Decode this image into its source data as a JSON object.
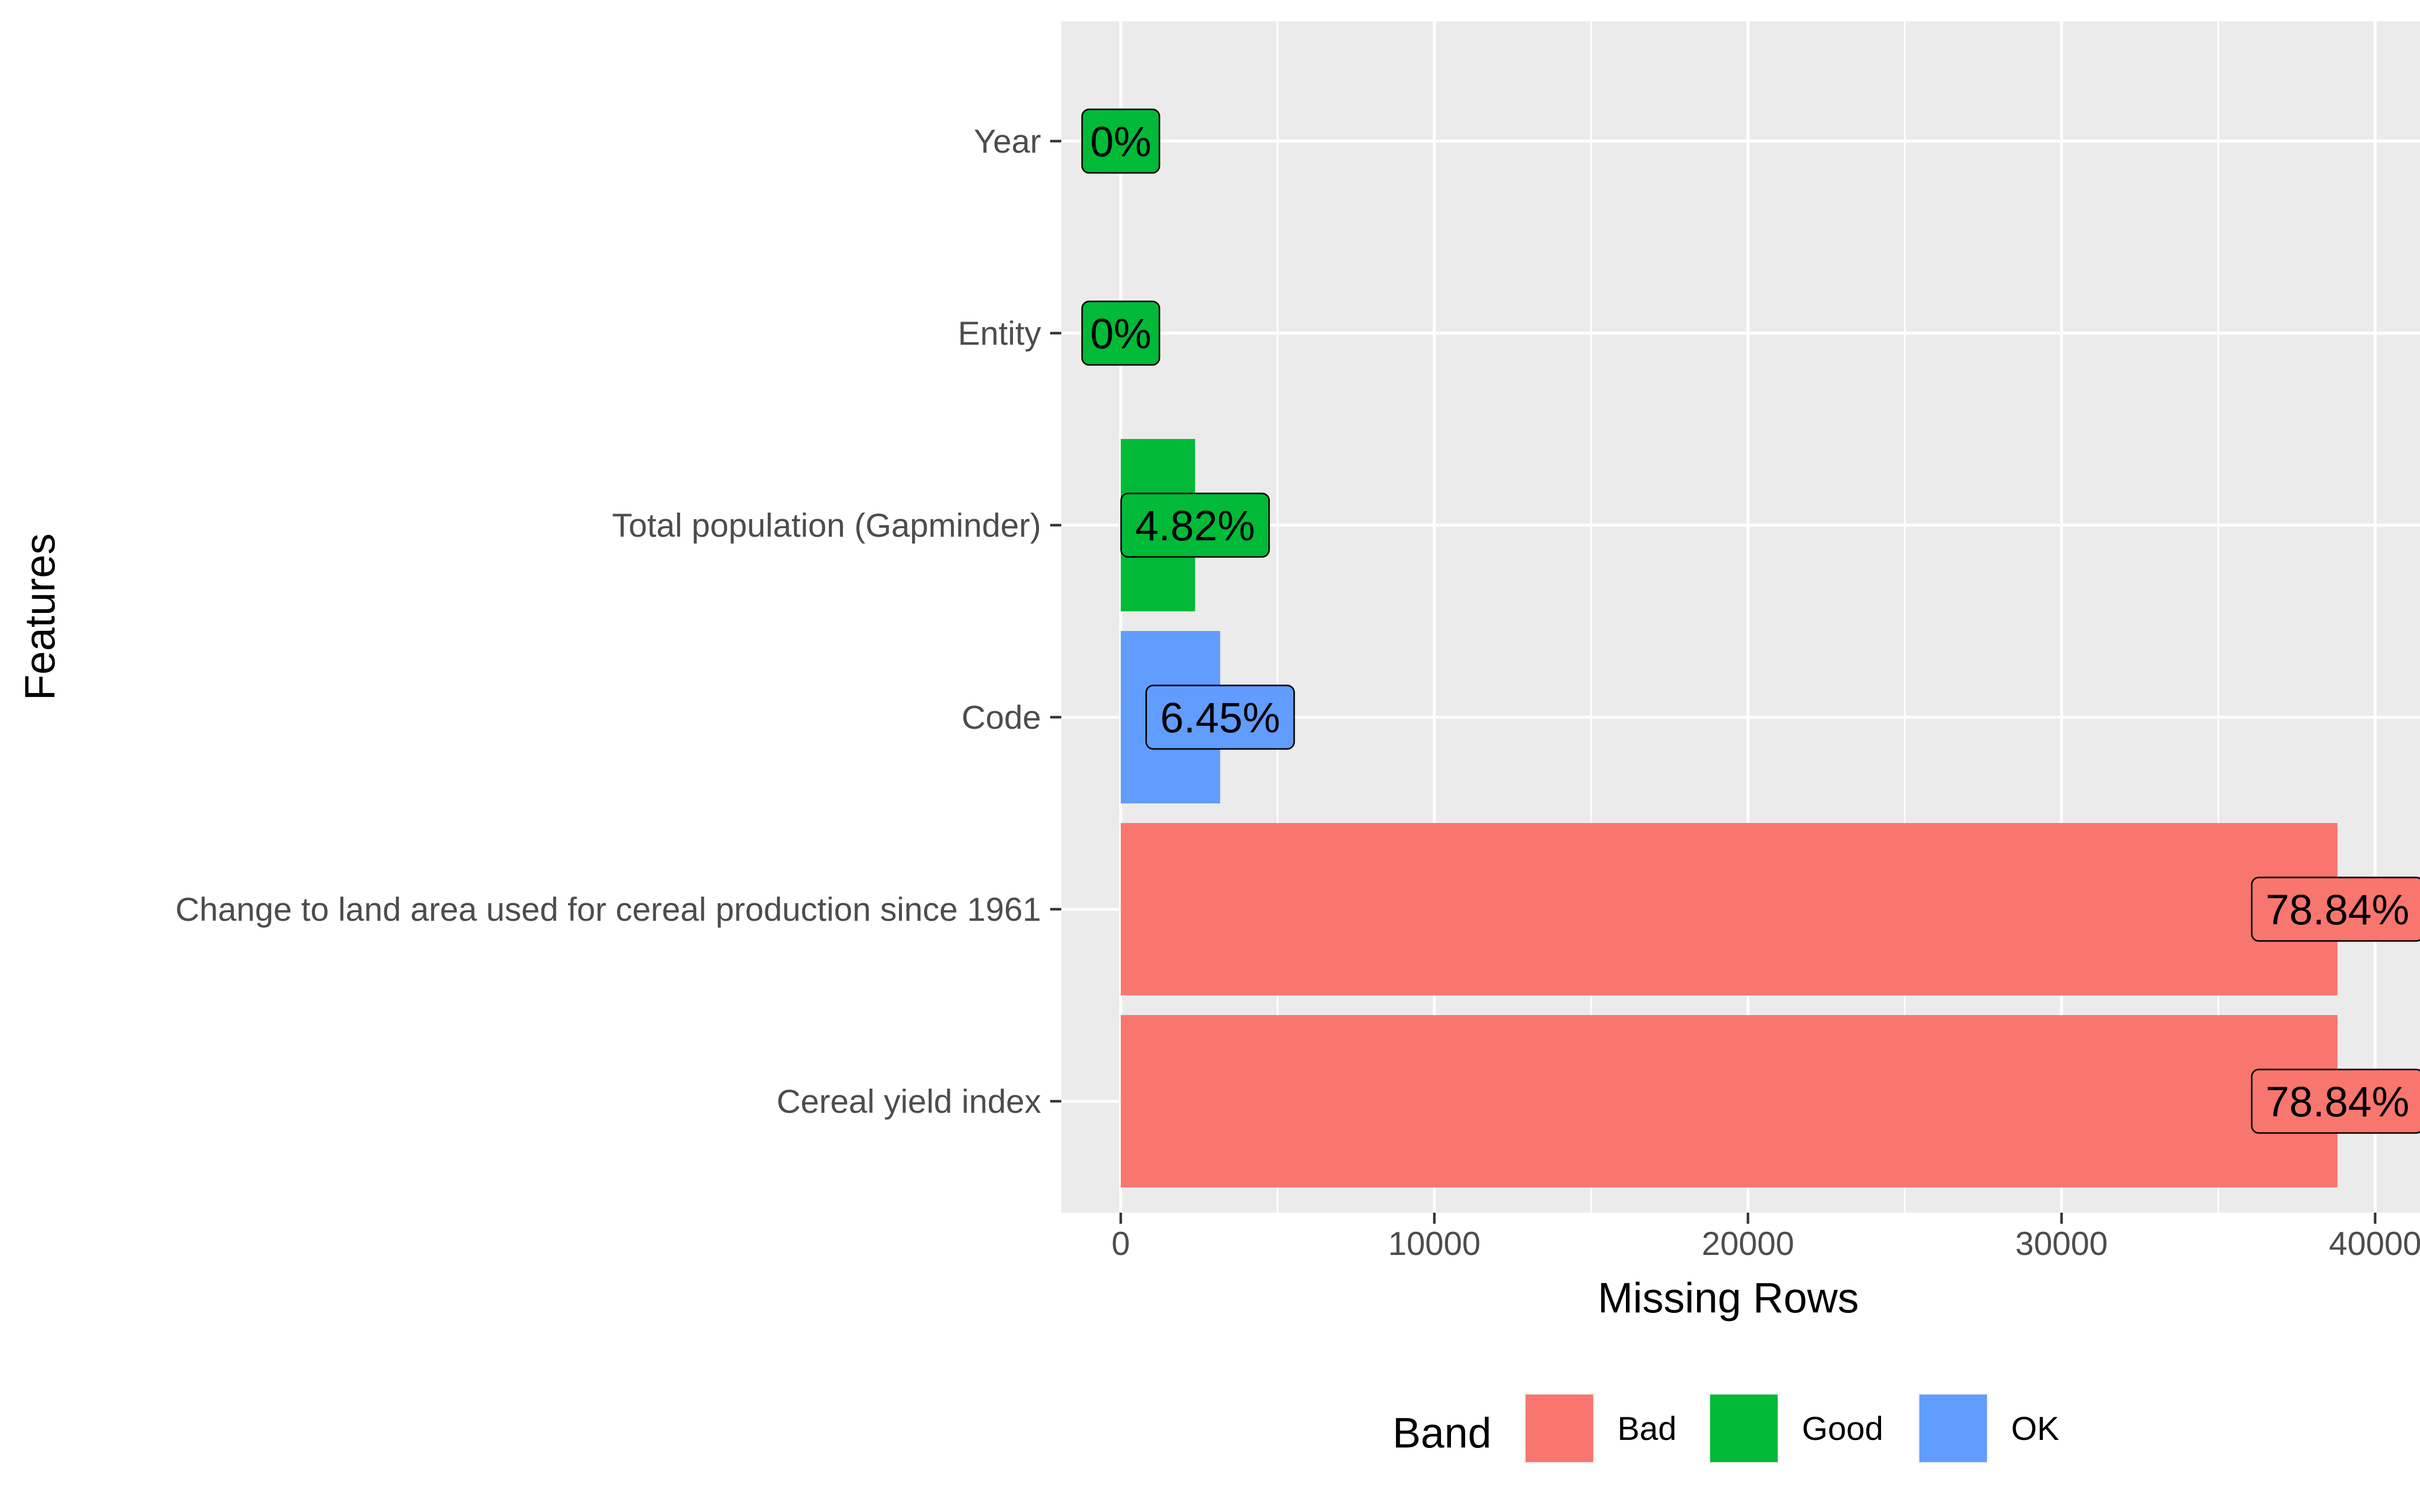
{
  "chart_data": {
    "type": "bar",
    "orientation": "horizontal",
    "categories": [
      "Cereal yield index",
      "Change to land area used for cereal production since 1961",
      "Code",
      "Total population (Gapminder)",
      "Entity",
      "Year"
    ],
    "values": [
      38800,
      38800,
      3170,
      2370,
      0,
      0
    ],
    "bands": [
      "Bad",
      "Bad",
      "OK",
      "Good",
      "Good",
      "Good"
    ],
    "data_labels": [
      "78.84%",
      "78.84%",
      "6.45%",
      "4.82%",
      "0%",
      "0%"
    ],
    "xlabel": "Missing Rows",
    "ylabel": "Features",
    "xlim": [
      -1900,
      40000
    ],
    "xticks": [
      0,
      10000,
      20000,
      30000,
      40000
    ],
    "xtick_labels": [
      "0",
      "10000",
      "20000",
      "30000",
      "40000"
    ],
    "grid": true,
    "legend": {
      "title": "Band",
      "position": "bottom",
      "entries": [
        {
          "label": "Bad",
          "color": "#F8766D"
        },
        {
          "label": "Good",
          "color": "#00BA38"
        },
        {
          "label": "OK",
          "color": "#619CFF"
        }
      ]
    },
    "colors": {
      "Bad": "#F8766D",
      "Good": "#00BA38",
      "OK": "#619CFF"
    },
    "panel_background": "#EBEBEB",
    "grid_color": "#FFFFFF"
  }
}
